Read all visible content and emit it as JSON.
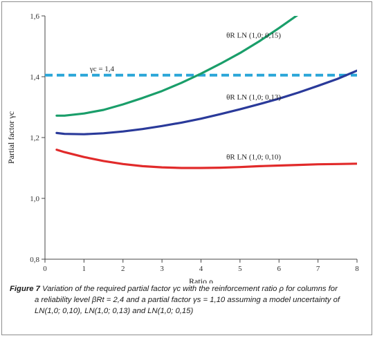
{
  "chart_data": {
    "type": "line",
    "title": "",
    "xlabel": "Ratio ρ",
    "ylabel": "Partial factor γc",
    "xlim": [
      0,
      8
    ],
    "ylim": [
      0.8,
      1.6
    ],
    "x_ticks": [
      "0",
      "1",
      "2",
      "3",
      "4",
      "5",
      "6",
      "7",
      "8"
    ],
    "y_ticks": [
      "0,8",
      "1,0",
      "1,2",
      "1,4",
      "1,6"
    ],
    "grid": false,
    "series": [
      {
        "name": "θR LN (1,0; 0,15)",
        "color": "#1a9e6a",
        "x": [
          0.3,
          0.5,
          1.0,
          1.5,
          2.0,
          2.5,
          3.0,
          3.5,
          4.0,
          4.5,
          5.0,
          5.5,
          6.0,
          6.5,
          6.8
        ],
        "y": [
          1.272,
          1.272,
          1.279,
          1.291,
          1.309,
          1.33,
          1.353,
          1.38,
          1.41,
          1.443,
          1.478,
          1.517,
          1.56,
          1.605,
          1.63
        ]
      },
      {
        "name": "θR LN (1,0; 0,13)",
        "color": "#2a3a9a",
        "x": [
          0.3,
          0.5,
          1.0,
          1.5,
          2.0,
          2.5,
          3.0,
          3.5,
          4.0,
          4.5,
          5.0,
          5.5,
          6.0,
          6.5,
          7.0,
          7.5,
          8.0
        ],
        "y": [
          1.215,
          1.212,
          1.211,
          1.214,
          1.22,
          1.228,
          1.238,
          1.249,
          1.262,
          1.277,
          1.293,
          1.31,
          1.328,
          1.348,
          1.37,
          1.393,
          1.42
        ]
      },
      {
        "name": "θR LN (1,0; 0,10)",
        "color": "#e12a2a",
        "x": [
          0.3,
          0.5,
          1.0,
          1.5,
          2.0,
          2.5,
          3.0,
          3.5,
          4.0,
          4.5,
          5.0,
          5.5,
          6.0,
          6.5,
          7.0,
          7.5,
          8.0
        ],
        "y": [
          1.16,
          1.152,
          1.136,
          1.123,
          1.113,
          1.106,
          1.102,
          1.1,
          1.1,
          1.101,
          1.103,
          1.106,
          1.108,
          1.11,
          1.112,
          1.113,
          1.114
        ]
      }
    ],
    "reference_line": {
      "label": "γc = 1,4",
      "y": 1.405,
      "color": "#2aa6d8",
      "style": "dashed"
    }
  },
  "caption": {
    "figure_label": "Figure 7",
    "line1": "Variation of the required partial factor γc with the reinforcement ratio ρ for columns for",
    "line2": "a reliability level βRt = 2,4 and a partial factor γs = 1,10 assuming a model uncertainty of",
    "line3": "LN(1,0; 0,10), LN(1,0; 0,13) and LN(1,0; 0,15)"
  }
}
